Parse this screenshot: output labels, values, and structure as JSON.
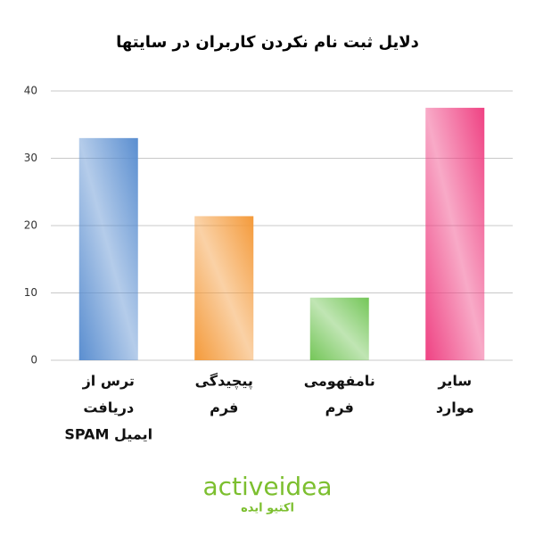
{
  "chart_data": {
    "type": "bar",
    "title": "دلایل ثبت نام نکردن کاربران در سایتها",
    "categories": [
      [
        "ترس از",
        "دریافت",
        "ایمیل SPAM"
      ],
      [
        "پیچیدگی",
        "فرم"
      ],
      [
        "نامفهومی",
        "فرم"
      ],
      [
        "سایر",
        "موارد"
      ]
    ],
    "values": [
      33,
      21.4,
      9.3,
      37.5
    ],
    "colors": [
      "#5a8ed0",
      "#f49a3a",
      "#74c658",
      "#ef4283"
    ],
    "ylim": [
      0,
      40
    ],
    "yticks": [
      0,
      10,
      20,
      30,
      40
    ],
    "grid": true
  },
  "logo": {
    "text": "activeidea",
    "subtext": "اکتیو ایده"
  }
}
